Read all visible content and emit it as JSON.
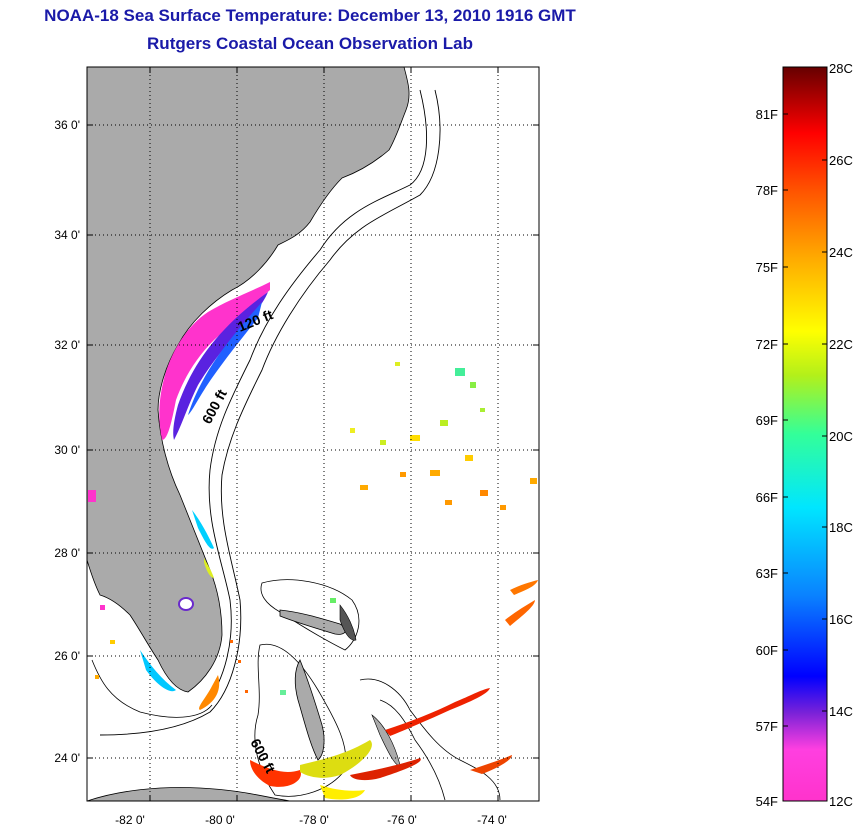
{
  "title": "NOAA-18 Sea Surface Temperature:  December 13, 2010 1916 GMT",
  "subtitle": "Rutgers Coastal Ocean Observation Lab",
  "map": {
    "lon_ticks": [
      "-82 0'",
      "-80 0'",
      "-78 0'",
      "-76 0'",
      "-74 0'"
    ],
    "lat_ticks": [
      "36 0'",
      "34 0'",
      "32 0'",
      "30 0'",
      "28 0'",
      "26 0'",
      "24 0'"
    ],
    "lon_range": [
      -83,
      -72.7
    ],
    "lat_range": [
      23,
      37.2
    ],
    "land_color": "#aaaaaa",
    "contour_labels": [
      "120 ft",
      "600 ft",
      "600 ft"
    ]
  },
  "colorbar": {
    "fahrenheit_labels": [
      "81F",
      "78F",
      "75F",
      "72F",
      "69F",
      "66F",
      "63F",
      "60F",
      "57F",
      "54F"
    ],
    "celsius_labels": [
      "28C",
      "26C",
      "24C",
      "22C",
      "20C",
      "18C",
      "16C",
      "14C",
      "12C"
    ],
    "colors": [
      "#ff33cc",
      "#7a22d8",
      "#0000ff",
      "#0a82ff",
      "#00e6ff",
      "#33ff99",
      "#b3f01a",
      "#ffff00",
      "#ffaa00",
      "#ff5500",
      "#ff0000",
      "#660000"
    ]
  }
}
